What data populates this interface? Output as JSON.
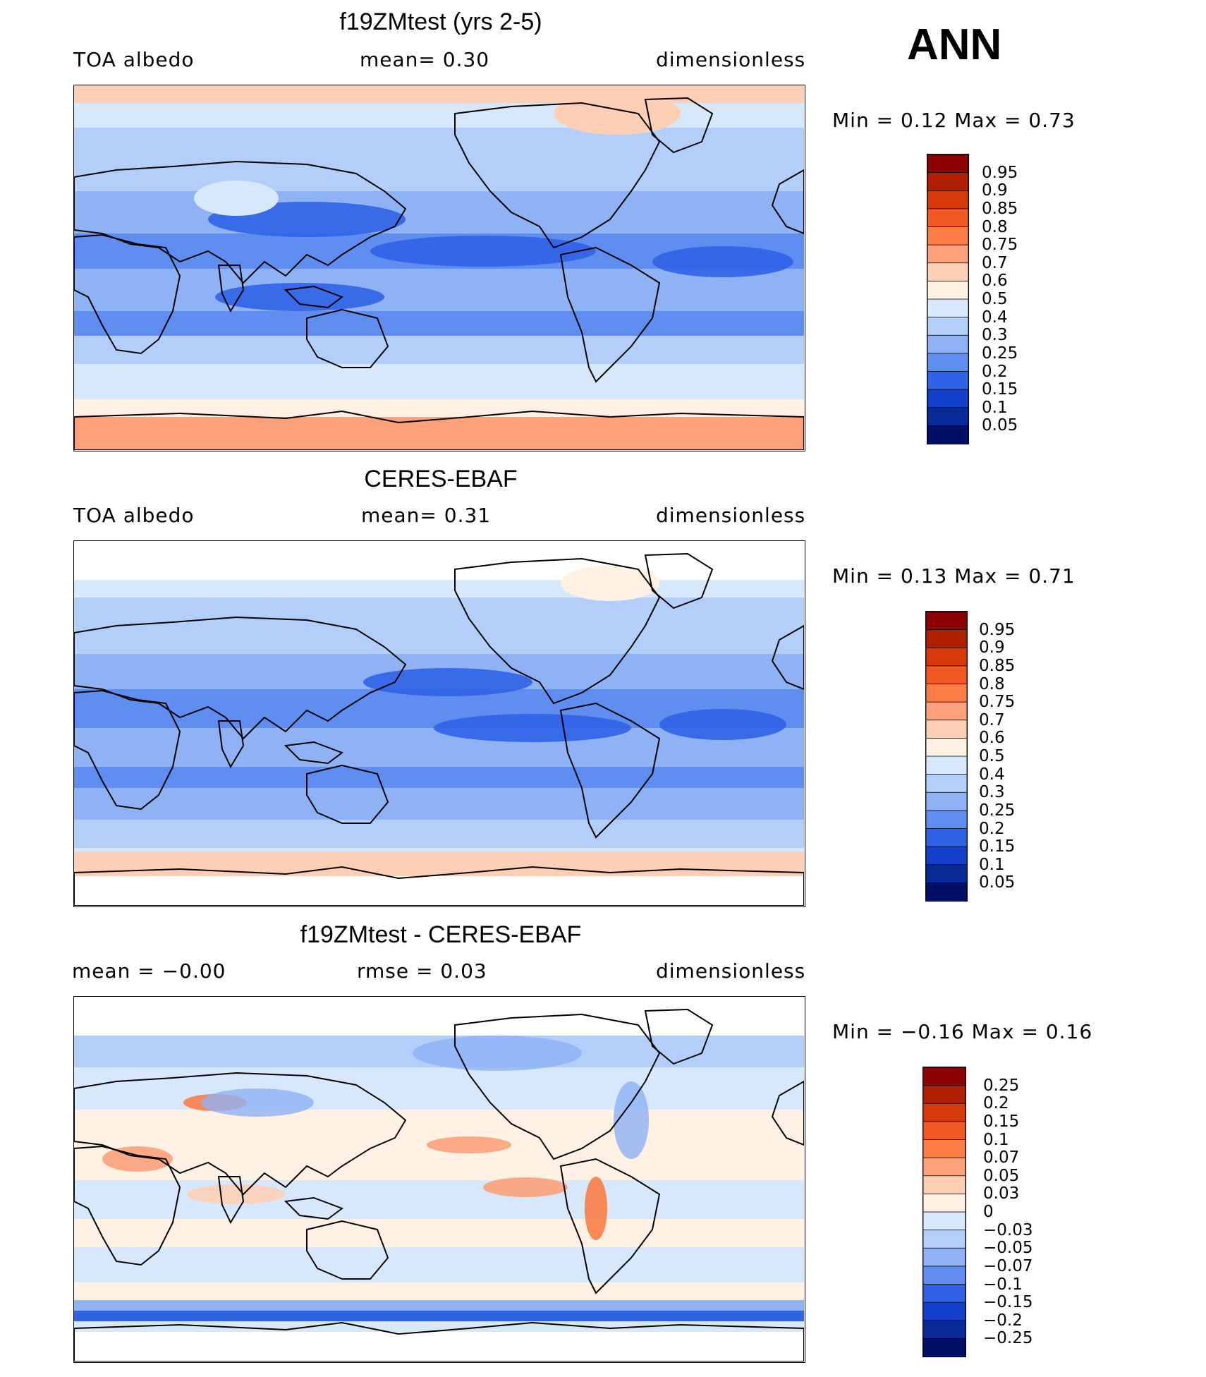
{
  "season": "ANN",
  "panels": [
    {
      "title": "f19ZMtest (yrs 2-5)",
      "left_text": "TOA  albedo",
      "mid_text": "mean=    0.30",
      "right_text": "dimensionless",
      "stats_text": "Min  =     0.12  Max  =     0.73",
      "kind": "model",
      "colorbar": {
        "labels": [
          "0.95",
          "0.9",
          "0.85",
          "0.8",
          "0.75",
          "0.7",
          "0.6",
          "0.5",
          "0.4",
          "0.3",
          "0.25",
          "0.2",
          "0.15",
          "0.1",
          "0.05"
        ],
        "colors": [
          "#8b0000",
          "#b01e00",
          "#d63a0a",
          "#f05a22",
          "#fb7d45",
          "#fca17a",
          "#fdd0b5",
          "#fff1e3",
          "#d8e8fc",
          "#b4cefa",
          "#8fb2f5",
          "#5f8ef0",
          "#3062e6",
          "#123fcc",
          "#082a99",
          "#000f66"
        ]
      }
    },
    {
      "title": "CERES-EBAF",
      "left_text": "TOA  albedo",
      "mid_text": "mean=    0.31",
      "right_text": "dimensionless",
      "stats_text": "Min  =     0.13  Max  =     0.71",
      "kind": "obs",
      "colorbar": {
        "labels": [
          "0.95",
          "0.9",
          "0.85",
          "0.8",
          "0.75",
          "0.7",
          "0.6",
          "0.5",
          "0.4",
          "0.3",
          "0.25",
          "0.2",
          "0.15",
          "0.1",
          "0.05"
        ],
        "colors": [
          "#8b0000",
          "#b01e00",
          "#d63a0a",
          "#f05a22",
          "#fb7d45",
          "#fca17a",
          "#fdd0b5",
          "#fff1e3",
          "#d8e8fc",
          "#b4cefa",
          "#8fb2f5",
          "#5f8ef0",
          "#3062e6",
          "#123fcc",
          "#082a99",
          "#000f66"
        ]
      }
    },
    {
      "title": "f19ZMtest - CERES-EBAF",
      "left_text": "mean  =   −0.00",
      "mid_text": "rmse  =    0.03",
      "right_text": "dimensionless",
      "stats_text": "Min  =   −0.16  Max  =     0.16",
      "kind": "diff",
      "colorbar": {
        "labels": [
          "0.25",
          "0.2",
          "0.15",
          "0.1",
          "0.07",
          "0.05",
          "0.03",
          "0",
          "−0.03",
          "−0.05",
          "−0.07",
          "−0.1",
          "−0.15",
          "−0.2",
          "−0.25"
        ],
        "colors": [
          "#8b0000",
          "#b01e00",
          "#d63a0a",
          "#f05a22",
          "#fb7d45",
          "#fca17a",
          "#fdd0b5",
          "#fff1e3",
          "#d8e8fc",
          "#b4cefa",
          "#8fb2f5",
          "#5f8ef0",
          "#3062e6",
          "#123fcc",
          "#082a99",
          "#000f66"
        ]
      }
    }
  ],
  "palette": {
    "deep_blue": "#3062e6",
    "mid_blue": "#5f8ef0",
    "light_blue": "#8fb2f5",
    "pale_blue": "#b4cefa",
    "very_pale_blue": "#d8e8fc",
    "cream": "#fff1e3",
    "peach": "#fdd0b5",
    "salmon": "#fca17a",
    "orange": "#fb7d45"
  }
}
